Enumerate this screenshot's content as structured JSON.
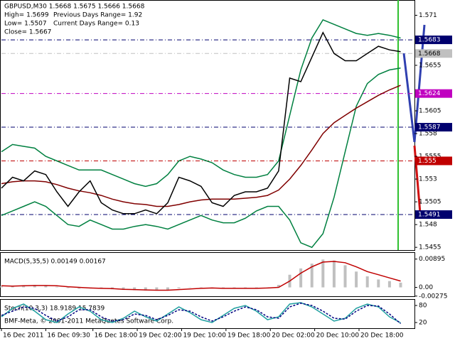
{
  "header": {
    "symbol": "GBPUSD,M30  1.5668 1.5675 1.5666 1.5668",
    "high": "High= 1.5699",
    "low": "Low= 1.5507",
    "close": "Close= 1.5667",
    "prev_range": "Previous Days Range= 1.92",
    "curr_range": "Current Days Range= 0.13"
  },
  "footer": "BMF-Meta, © 2001-2011 MetaQuotes Software Corp.",
  "chart_data": [
    {
      "type": "line",
      "xlim": [
        0,
        149
      ],
      "ylim": [
        1.5452,
        1.5726
      ],
      "x": [
        0,
        4,
        8,
        12,
        16,
        20,
        24,
        28,
        32,
        36,
        40,
        44,
        48,
        52,
        56,
        60,
        64,
        68,
        72,
        76,
        80,
        84,
        88,
        92,
        96,
        100,
        104,
        108,
        112,
        116,
        120,
        124,
        128,
        132,
        136,
        140,
        144
      ],
      "yticks": [
        1.571,
        1.5655,
        1.5605,
        1.558,
        1.5555,
        1.553,
        1.5505,
        1.548,
        1.5455
      ],
      "levels": [
        1.5683,
        1.5668,
        1.5624,
        1.5587,
        1.555,
        1.5491
      ],
      "level_colors": [
        "#00006e",
        "#c0c0c0",
        "#c000c0",
        "#00006e",
        "#c00000",
        "#00006e"
      ],
      "series": [
        {
          "style": "line",
          "color": "#008040",
          "values": [
            1.556,
            1.5568,
            1.5566,
            1.5564,
            1.5555,
            1.555,
            1.5545,
            1.554,
            1.554,
            1.554,
            1.5535,
            1.553,
            1.5525,
            1.5522,
            1.5525,
            1.5535,
            1.555,
            1.5555,
            1.5552,
            1.5548,
            1.554,
            1.5535,
            1.5532,
            1.5532,
            1.5535,
            1.555,
            1.56,
            1.565,
            1.5685,
            1.5705,
            1.57,
            1.5695,
            1.569,
            1.5688,
            1.569,
            1.5688,
            1.5685
          ]
        },
        {
          "style": "line",
          "color": "#008040",
          "values": [
            1.549,
            1.5495,
            1.55,
            1.5505,
            1.55,
            1.549,
            1.548,
            1.5478,
            1.5485,
            1.548,
            1.5475,
            1.5475,
            1.5478,
            1.548,
            1.5478,
            1.5475,
            1.548,
            1.5485,
            1.549,
            1.5485,
            1.5482,
            1.5482,
            1.5487,
            1.5495,
            1.55,
            1.55,
            1.5485,
            1.546,
            1.5455,
            1.547,
            1.551,
            1.556,
            1.561,
            1.5635,
            1.5645,
            1.565,
            1.5652
          ]
        },
        {
          "style": "line",
          "color": "#800000",
          "values": [
            1.5525,
            1.5527,
            1.5528,
            1.5528,
            1.5527,
            1.5524,
            1.552,
            1.5517,
            1.5515,
            1.5512,
            1.5508,
            1.5505,
            1.5503,
            1.5502,
            1.55,
            1.55,
            1.5502,
            1.5505,
            1.5507,
            1.5508,
            1.5508,
            1.5508,
            1.5509,
            1.551,
            1.5512,
            1.5518,
            1.553,
            1.5545,
            1.5562,
            1.558,
            1.5592,
            1.56,
            1.5608,
            1.5615,
            1.5622,
            1.5628,
            1.5633
          ]
        },
        {
          "style": "line",
          "color": "#000000",
          "values": [
            1.552,
            1.5532,
            1.5528,
            1.5539,
            1.5535,
            1.5516,
            1.55,
            1.5516,
            1.5528,
            1.5504,
            1.5496,
            1.5492,
            1.5492,
            1.5496,
            1.5492,
            1.5504,
            1.5532,
            1.5528,
            1.5522,
            1.5504,
            1.55,
            1.5512,
            1.5516,
            1.5516,
            1.552,
            1.5539,
            1.5641,
            1.5637,
            1.5664,
            1.5691,
            1.5668,
            1.566,
            1.566,
            1.5668,
            1.5676,
            1.5672,
            1.567
          ]
        }
      ]
    },
    {
      "type": "line",
      "label": "MACD(5,35,5) 0.00149 0.00167",
      "xlim": [
        0,
        149
      ],
      "ylim": [
        -0.0028,
        0.0109
      ],
      "x": [
        0,
        4,
        8,
        12,
        16,
        20,
        24,
        28,
        32,
        36,
        40,
        44,
        48,
        52,
        56,
        60,
        64,
        68,
        72,
        76,
        80,
        84,
        88,
        92,
        96,
        100,
        104,
        108,
        112,
        116,
        120,
        124,
        128,
        132,
        136,
        140,
        144
      ],
      "yticks": [
        0.00895,
        {
          "value": 0,
          "label": "0.00"
        },
        -0.00275
      ],
      "series": [
        {
          "style": "bar",
          "color": "#c0c0c0",
          "values": [
            0.0003,
            0.0005,
            0.0007,
            0.0008,
            0.0006,
            0.0002,
            -0.0002,
            -0.0004,
            -0.0002,
            -0.0004,
            -0.0006,
            -0.0008,
            -0.0009,
            -0.001,
            -0.001,
            -0.0008,
            -0.0003,
            0,
            0.0001,
            -0.0002,
            -0.0004,
            -0.0004,
            -0.0003,
            -0.0002,
            0,
            0.0008,
            0.004,
            0.006,
            0.0075,
            0.0088,
            0.0085,
            0.007,
            0.005,
            0.0035,
            0.0025,
            0.002,
            0.0015
          ]
        },
        {
          "style": "line",
          "color": "#c00000",
          "values": [
            0.0005,
            0.0004,
            0.0005,
            0.0006,
            0.0006,
            0.0005,
            0.0002,
            0,
            -0.0002,
            -0.0003,
            -0.0004,
            -0.0006,
            -0.0007,
            -0.0008,
            -0.0009,
            -0.0009,
            -0.0007,
            -0.0005,
            -0.0003,
            -0.0002,
            -0.0003,
            -0.0003,
            -0.0003,
            -0.0003,
            -0.0002,
            0,
            0.002,
            0.0045,
            0.0065,
            0.008,
            0.0082,
            0.0078,
            0.0065,
            0.005,
            0.004,
            0.003,
            0.002
          ]
        }
      ]
    },
    {
      "type": "line",
      "label": "Stoch(10,3,3) 18.9189 15.7839",
      "xlim": [
        0,
        149
      ],
      "ylim": [
        0,
        100
      ],
      "x": [
        0,
        4,
        8,
        12,
        16,
        20,
        24,
        28,
        32,
        36,
        40,
        44,
        48,
        52,
        56,
        60,
        64,
        68,
        72,
        76,
        80,
        84,
        88,
        92,
        96,
        100,
        104,
        108,
        112,
        116,
        120,
        124,
        128,
        132,
        136,
        140,
        144
      ],
      "yticks": [
        80,
        20
      ],
      "xticks": [
        {
          "value": 0,
          "label": "16 Dec 2011"
        },
        {
          "value": 16,
          "label": "16 Dec 09:30"
        },
        {
          "value": 33,
          "label": "16 Dec 18:00"
        },
        {
          "value": 49,
          "label": "19 Dec 02:00"
        },
        {
          "value": 65,
          "label": "19 Dec 10:00"
        },
        {
          "value": 81,
          "label": "19 Dec 18:00"
        },
        {
          "value": 97,
          "label": "20 Dec 02:00"
        },
        {
          "value": 113,
          "label": "20 Dec 10:00"
        },
        {
          "value": 129,
          "label": "20 Dec 18:00"
        }
      ],
      "series": [
        {
          "style": "line",
          "color": "#20a0a0",
          "values": [
            40,
            70,
            85,
            60,
            30,
            20,
            50,
            75,
            60,
            30,
            20,
            35,
            60,
            40,
            25,
            50,
            75,
            55,
            30,
            20,
            45,
            70,
            80,
            60,
            30,
            40,
            85,
            90,
            75,
            50,
            25,
            35,
            70,
            85,
            75,
            40,
            19
          ]
        },
        {
          "style": "dash",
          "color": "#000080",
          "values": [
            45,
            60,
            75,
            70,
            45,
            25,
            40,
            65,
            65,
            40,
            25,
            30,
            50,
            45,
            30,
            45,
            65,
            60,
            40,
            25,
            40,
            60,
            75,
            65,
            40,
            35,
            75,
            88,
            80,
            60,
            35,
            32,
            60,
            80,
            78,
            50,
            16
          ]
        }
      ]
    }
  ]
}
